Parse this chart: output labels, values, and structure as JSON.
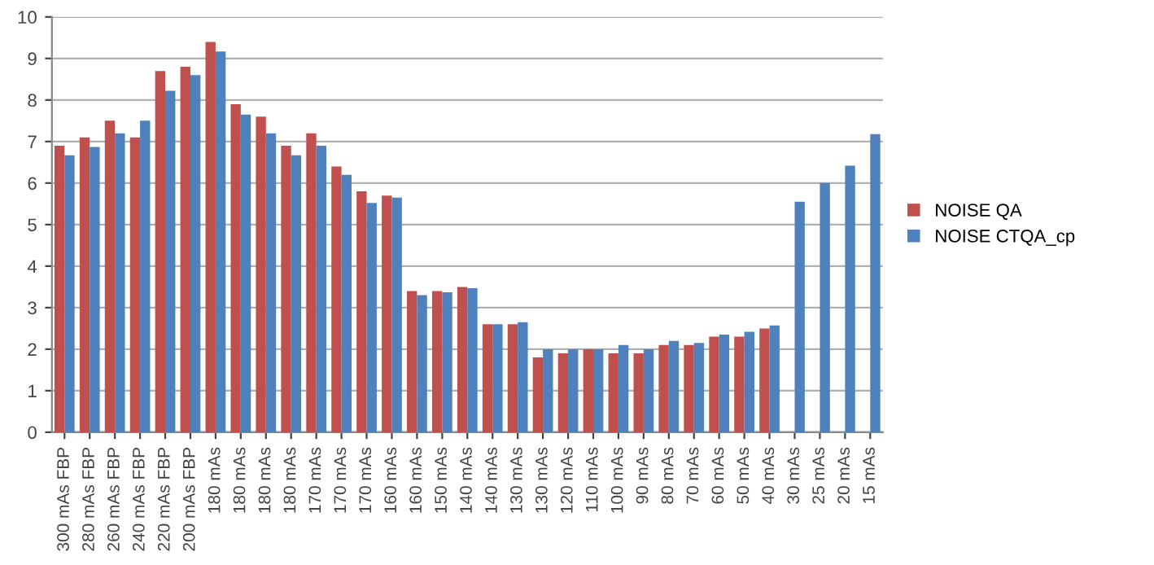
{
  "chart_data": {
    "type": "bar",
    "categories": [
      "300 mAs FBP",
      "280 mAs FBP",
      "260 mAs FBP",
      "240 mAs FBP",
      "220 mAs FBP",
      "200 mAs FBP",
      "180 mAs",
      "180 mAs",
      "180 mAs",
      "180 mAs",
      "170 mAs",
      "170 mAs",
      "170 mAs",
      "160 mAs",
      "160 mAs",
      "150 mAs",
      "140 mAs",
      "140 mAs",
      "130 mAs",
      "130 mAs",
      "120 mAs",
      "110 mAs",
      "100 mAs",
      "90 mAs",
      "80 mAs",
      "70 mAs",
      "60 mAs",
      "50 mAs",
      "40 mAs",
      "30 mAs",
      "25 mAs",
      "20 mAs",
      "15 mAs"
    ],
    "series": [
      {
        "name": "NOISE QA",
        "color": "#c0504d",
        "values": [
          6.9,
          7.1,
          7.5,
          7.1,
          8.7,
          8.8,
          9.4,
          7.9,
          7.6,
          6.9,
          7.2,
          6.4,
          5.8,
          5.7,
          3.4,
          3.4,
          3.5,
          2.6,
          2.6,
          1.8,
          1.9,
          2.0,
          1.9,
          1.9,
          2.1,
          2.1,
          2.3,
          2.3,
          2.5,
          null,
          null,
          null,
          null
        ]
      },
      {
        "name": "NOISE CTQA_cp",
        "color": "#4f81bd",
        "values": [
          6.67,
          6.87,
          7.2,
          7.5,
          8.22,
          8.6,
          9.17,
          7.65,
          7.2,
          6.67,
          6.9,
          6.2,
          5.52,
          5.65,
          3.3,
          3.37,
          3.47,
          2.6,
          2.65,
          2.0,
          2.0,
          2.0,
          2.1,
          2.0,
          2.2,
          2.15,
          2.35,
          2.42,
          2.57,
          5.55,
          6.0,
          6.42,
          7.18
        ]
      }
    ],
    "ylim": [
      0,
      10
    ],
    "yticks": [
      0,
      1,
      2,
      3,
      4,
      5,
      6,
      7,
      8,
      9,
      10
    ],
    "grid": "y",
    "legend": "right"
  }
}
